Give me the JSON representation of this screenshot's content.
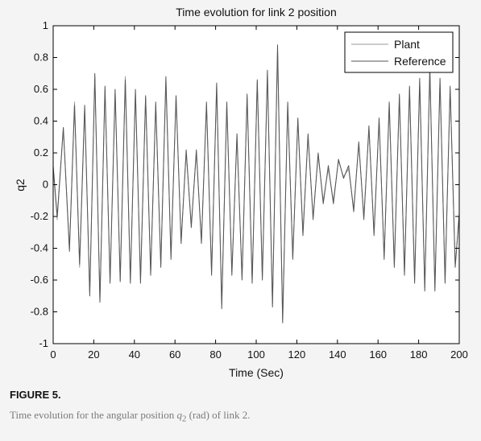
{
  "figure": {
    "label": "FIGURE 5.",
    "caption_before": "Time evolution for the angular position ",
    "caption_symbol": "q",
    "caption_subscript": "2",
    "caption_after": " (rad) of link 2."
  },
  "colors": {
    "plant": "#9a9a9a",
    "reference": "#555555",
    "axes": "#000000",
    "plot_background": "#ffffff",
    "page_background": "#f4f4f4"
  },
  "chart_data": {
    "type": "line",
    "title": "Time evolution for link 2 position",
    "xlabel": "Time (Sec)",
    "ylabel": "q2",
    "xlim": [
      0,
      200
    ],
    "ylim": [
      -1,
      1
    ],
    "x_ticks": [
      0,
      20,
      40,
      60,
      80,
      100,
      120,
      140,
      160,
      180,
      200
    ],
    "x_tick_labels": [
      "0",
      "20",
      "40",
      "60",
      "80",
      "100",
      "120",
      "140",
      "160",
      "180",
      "200"
    ],
    "y_ticks": [
      1,
      0.8,
      0.6,
      0.4,
      0.2,
      0,
      -0.2,
      -0.4,
      -0.6,
      -0.8,
      -1
    ],
    "y_tick_labels": [
      "1",
      "0.8",
      "0.6",
      "0.4",
      "0.2",
      "0",
      "-0.2",
      "-0.4",
      "-0.6",
      "-0.8",
      "-1"
    ],
    "grid": false,
    "legend_position": "top-right",
    "series": [
      {
        "name": "Plant",
        "x": [
          0,
          2,
          5,
          8,
          10.5,
          13,
          15.5,
          18,
          20.5,
          23,
          25.5,
          28,
          30.5,
          33,
          35.5,
          38,
          40.5,
          43,
          45.5,
          48,
          50.5,
          53,
          55.5,
          58,
          60.5,
          63,
          65.5,
          68,
          70.5,
          73,
          75.5,
          78,
          80.5,
          83,
          85.5,
          88,
          90.5,
          93,
          95.5,
          98,
          100.5,
          103,
          105.5,
          108,
          110.5,
          113,
          115.5,
          118,
          120.5,
          123,
          125.5,
          128,
          130.5,
          133,
          135.5,
          138,
          140.5,
          143,
          145.5,
          148,
          150.5,
          153,
          155.5,
          158,
          160.5,
          163,
          165.5,
          168,
          170.5,
          173,
          175.5,
          178,
          180.5,
          183,
          185.5,
          188,
          190.5,
          193,
          195.5,
          198,
          200
        ],
        "y": [
          0.1,
          -0.22,
          0.35,
          -0.4,
          0.52,
          -0.52,
          0.48,
          -0.68,
          0.68,
          -0.73,
          0.6,
          -0.6,
          0.58,
          -0.6,
          0.68,
          -0.6,
          0.58,
          -0.6,
          0.55,
          -0.55,
          0.5,
          -0.5,
          0.65,
          -0.45,
          0.55,
          -0.35,
          0.2,
          -0.25,
          0.2,
          -0.35,
          0.5,
          -0.55,
          0.62,
          -0.75,
          0.5,
          -0.55,
          0.3,
          -0.58,
          0.55,
          -0.6,
          0.65,
          -0.58,
          0.7,
          -0.75,
          0.85,
          -0.85,
          0.5,
          -0.45,
          0.4,
          -0.3,
          0.3,
          -0.2,
          0.18,
          -0.1,
          0.1,
          -0.1,
          0.15,
          0.05,
          0.1,
          -0.15,
          0.25,
          -0.2,
          0.35,
          -0.3,
          0.4,
          -0.45,
          0.5,
          -0.5,
          0.55,
          -0.55,
          0.6,
          -0.6,
          0.65,
          -0.65,
          0.72,
          -0.65,
          0.65,
          -0.6,
          0.6,
          -0.5,
          -0.2
        ]
      },
      {
        "name": "Reference",
        "x": [
          0,
          2,
          5,
          8,
          10.5,
          13,
          15.5,
          18,
          20.5,
          23,
          25.5,
          28,
          30.5,
          33,
          35.5,
          38,
          40.5,
          43,
          45.5,
          48,
          50.5,
          53,
          55.5,
          58,
          60.5,
          63,
          65.5,
          68,
          70.5,
          73,
          75.5,
          78,
          80.5,
          83,
          85.5,
          88,
          90.5,
          93,
          95.5,
          98,
          100.5,
          103,
          105.5,
          108,
          110.5,
          113,
          115.5,
          118,
          120.5,
          123,
          125.5,
          128,
          130.5,
          133,
          135.5,
          138,
          140.5,
          143,
          145.5,
          148,
          150.5,
          153,
          155.5,
          158,
          160.5,
          163,
          165.5,
          168,
          170.5,
          173,
          175.5,
          178,
          180.5,
          183,
          185.5,
          188,
          190.5,
          193,
          195.5,
          198,
          200
        ],
        "y": [
          0.12,
          -0.2,
          0.36,
          -0.42,
          0.5,
          -0.5,
          0.5,
          -0.7,
          0.7,
          -0.74,
          0.62,
          -0.62,
          0.6,
          -0.61,
          0.66,
          -0.62,
          0.6,
          -0.62,
          0.56,
          -0.57,
          0.52,
          -0.52,
          0.68,
          -0.47,
          0.56,
          -0.37,
          0.22,
          -0.27,
          0.22,
          -0.37,
          0.52,
          -0.57,
          0.64,
          -0.78,
          0.52,
          -0.57,
          0.32,
          -0.6,
          0.57,
          -0.62,
          0.66,
          -0.6,
          0.72,
          -0.77,
          0.88,
          -0.87,
          0.52,
          -0.47,
          0.42,
          -0.32,
          0.32,
          -0.22,
          0.2,
          -0.12,
          0.12,
          -0.12,
          0.16,
          0.04,
          0.12,
          -0.17,
          0.27,
          -0.22,
          0.37,
          -0.32,
          0.42,
          -0.47,
          0.52,
          -0.52,
          0.57,
          -0.57,
          0.62,
          -0.62,
          0.67,
          -0.67,
          0.74,
          -0.67,
          0.67,
          -0.62,
          0.62,
          -0.52,
          -0.18
        ]
      }
    ]
  }
}
